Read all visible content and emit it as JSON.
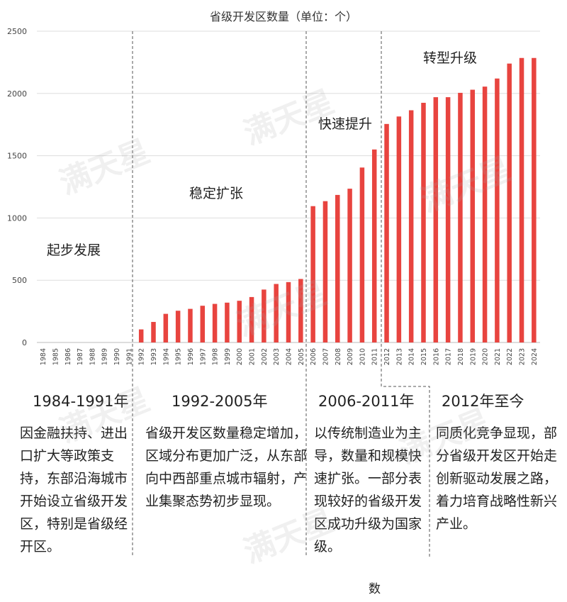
{
  "chart_data": {
    "type": "bar",
    "title": "省级开发区数量（单位：个）",
    "xlabel": "",
    "ylabel": "",
    "ylim": [
      0,
      2500
    ],
    "yticks": [
      0,
      500,
      1000,
      1500,
      2000,
      2500
    ],
    "grid": true,
    "bar_color": "#e8443f",
    "categories": [
      "1984",
      "1985",
      "1986",
      "1987",
      "1988",
      "1989",
      "1990",
      "1991",
      "1992",
      "1993",
      "1994",
      "1995",
      "1996",
      "1997",
      "1998",
      "1999",
      "2000",
      "2001",
      "2002",
      "2003",
      "2004",
      "2005",
      "2006",
      "2007",
      "2008",
      "2009",
      "2010",
      "2011",
      "2012",
      "2013",
      "2014",
      "2015",
      "2016",
      "2017",
      "2018",
      "2019",
      "2020",
      "2021",
      "2022",
      "2023",
      "2024"
    ],
    "values": [
      0,
      0,
      0,
      0,
      0,
      0,
      0,
      0,
      105,
      165,
      230,
      255,
      270,
      295,
      310,
      320,
      335,
      365,
      425,
      470,
      485,
      510,
      1095,
      1135,
      1185,
      1235,
      1405,
      1550,
      1755,
      1815,
      1865,
      1925,
      1970,
      1970,
      2005,
      2030,
      2055,
      2120,
      2240,
      2285,
      2285
    ],
    "phases": [
      "起步发展",
      "稳定扩张",
      "快速提升",
      "转型升级"
    ]
  },
  "periods": [
    {
      "head": "1984-1991年",
      "desc": "因金融扶持、进出口扩大等政策支持，东部沿海城市开始设立省级开发区，特别是省级经开区。"
    },
    {
      "head": "1992-2005年",
      "desc": "省级开发区数量稳定增加，区域分布更加广泛，从东部向中西部重点城市辐射，产业集聚态势初步显现。"
    },
    {
      "head": "2006-2011年",
      "desc": "以传统制造业为主导，数量和规模快速扩张。一部分表现较好的省级开发区成功升级为国家级。"
    },
    {
      "head": "2012年至今",
      "desc": "同质化竞争显现，部分省级开发区开始走创新驱动发展之路，着力培育战略性新兴产业。"
    }
  ],
  "footer_fragment": "数",
  "watermark": "满天星"
}
